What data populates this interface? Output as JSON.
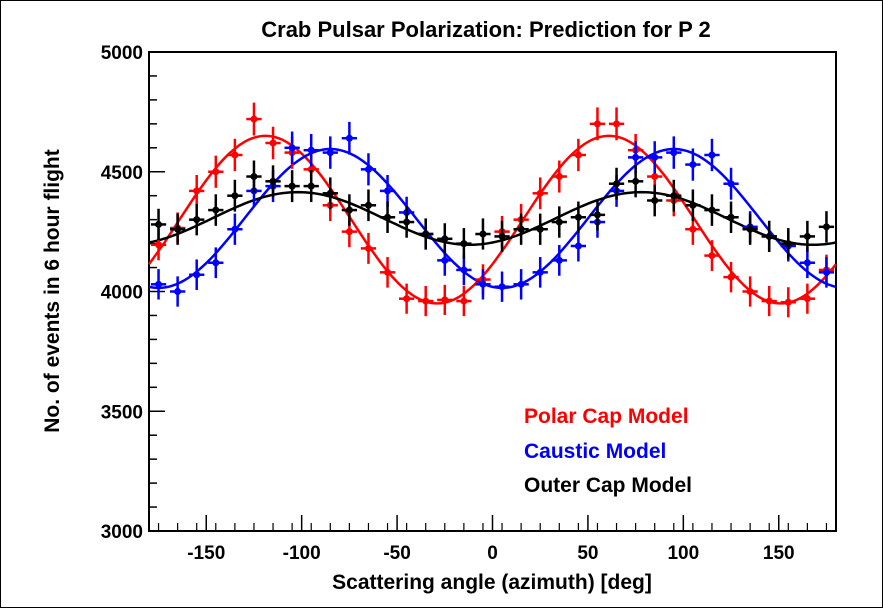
{
  "chart_data": {
    "type": "scatter",
    "title": "Crab Pulsar Polarization: Prediction for P 2",
    "xlabel": "Scattering angle (azimuth) [deg]",
    "ylabel": "No. of events in 6 hour flight",
    "xlim": [
      -180,
      180
    ],
    "ylim": [
      3000,
      5000
    ],
    "xticks": [
      -150,
      -100,
      -50,
      0,
      50,
      100,
      150
    ],
    "yticks": [
      3000,
      3500,
      4000,
      4500,
      5000
    ],
    "grid": false,
    "legend_placement": "bottom-right",
    "x": [
      -175,
      -165,
      -155,
      -145,
      -135,
      -125,
      -115,
      -105,
      -95,
      -85,
      -75,
      -65,
      -55,
      -45,
      -35,
      -25,
      -15,
      -5,
      5,
      15,
      25,
      35,
      45,
      55,
      65,
      75,
      85,
      95,
      105,
      115,
      125,
      135,
      145,
      155,
      165,
      175
    ],
    "series": [
      {
        "name": "Polar Cap Model",
        "color": "#ff0000",
        "values": [
          4195,
          4265,
          4420,
          4500,
          4570,
          4720,
          4620,
          4580,
          4510,
          4360,
          4250,
          4180,
          4080,
          3970,
          3960,
          3965,
          3960,
          4050,
          4250,
          4300,
          4410,
          4480,
          4570,
          4700,
          4700,
          4590,
          4480,
          4380,
          4260,
          4150,
          4060,
          4000,
          3960,
          3955,
          3970,
          4090
        ],
        "fit": {
          "offset": 4300,
          "amplitude": 350,
          "phase_deg": 61
        }
      },
      {
        "name": "Caustic Model",
        "color": "#0000ff",
        "values": [
          4030,
          4000,
          4070,
          4120,
          4260,
          4420,
          4440,
          4600,
          4590,
          4580,
          4640,
          4510,
          4420,
          4330,
          4240,
          4130,
          4090,
          4030,
          4020,
          4030,
          4080,
          4130,
          4190,
          4290,
          4420,
          4560,
          4560,
          4580,
          4530,
          4570,
          4450,
          4270,
          4230,
          4190,
          4120,
          4080
        ],
        "fit": {
          "offset": 4305,
          "amplitude": 290,
          "phase_deg": 95
        }
      },
      {
        "name": "Outer Cap Model",
        "color": "#000000",
        "values": [
          4280,
          4260,
          4300,
          4340,
          4400,
          4480,
          4460,
          4440,
          4440,
          4410,
          4340,
          4360,
          4310,
          4290,
          4240,
          4220,
          4200,
          4240,
          4230,
          4260,
          4260,
          4290,
          4310,
          4320,
          4450,
          4460,
          4380,
          4400,
          4360,
          4340,
          4310,
          4260,
          4230,
          4200,
          4230,
          4270
        ],
        "fit": {
          "offset": 4305,
          "amplitude": 110,
          "phase_deg": 78
        }
      }
    ],
    "legend": [
      "Polar Cap Model",
      "Caustic Model",
      "Outer Cap Model"
    ]
  }
}
